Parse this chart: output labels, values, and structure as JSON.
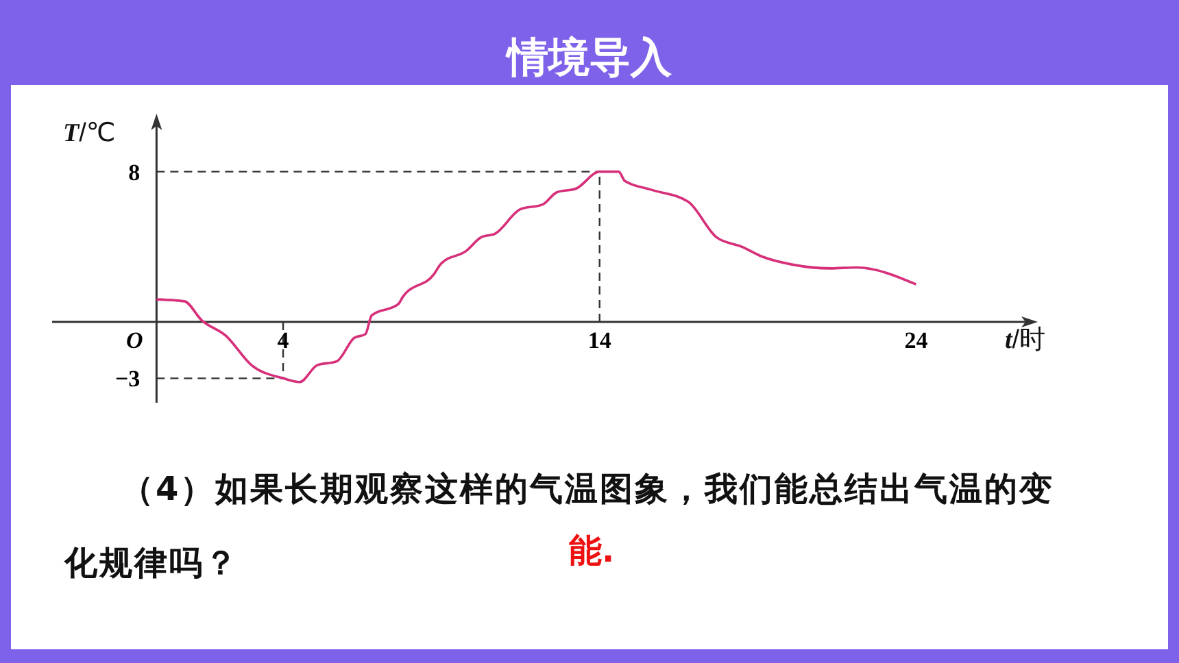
{
  "chart_data": {
    "type": "line",
    "title": "情境导入",
    "xlabel": "t/时",
    "ylabel": "T/℃",
    "x": [
      0,
      0.88,
      1.42,
      2.2,
      3.0,
      4,
      4.52,
      5.08,
      5.69,
      6.25,
      6.6,
      6.8,
      7.64,
      7.77,
      8.77,
      8.99,
      9.8,
      10.25,
      10.7,
      11.5,
      12.2,
      12.65,
      13.26,
      14,
      14.6,
      14.8,
      15.6,
      16.8,
      17.7,
      18.5,
      19.1,
      20.1,
      21.3,
      22.1,
      24
    ],
    "series": [
      {
        "color": "#d6307a",
        "values": [
          1.2,
          1.1,
          0.1,
          -0.75,
          -2.3,
          -3,
          -3.2,
          -2.3,
          -2.1,
          -0.85,
          -0.65,
          0.35,
          0.95,
          1.3,
          2.55,
          3.1,
          3.8,
          4.5,
          4.7,
          6.0,
          6.25,
          6.9,
          7.1,
          8,
          8,
          7.5,
          7.05,
          6.4,
          4.5,
          4.0,
          3.5,
          3.05,
          2.85,
          2.9,
          2.0
        ]
      }
    ],
    "xlim": [
      -3.3,
      27.5
    ],
    "ylim": [
      -4.3,
      10.5
    ],
    "xticks": [
      4,
      14,
      24
    ],
    "yticks": [
      8,
      -3
    ],
    "ref_lines": [
      {
        "axis": "x",
        "value": 4,
        "line_style": "dashed"
      },
      {
        "axis": "x",
        "value": 14,
        "line_style": "dashed"
      },
      {
        "axis": "y",
        "value": 8,
        "line_style": "dashed"
      },
      {
        "axis": "y",
        "value": -3,
        "line_style": "dashed"
      }
    ],
    "annotations": [
      "O",
      "（4）如果长期观察这样的气温图象，我们能总结出气温的变化规律吗？",
      "能."
    ],
    "grid": false,
    "marker": "none",
    "line_style": "solid"
  }
}
